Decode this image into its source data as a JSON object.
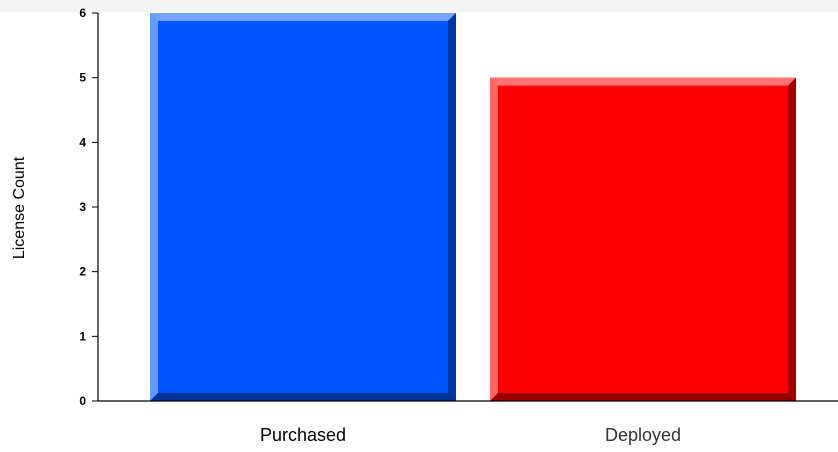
{
  "chart_data": {
    "type": "bar",
    "title": "",
    "xlabel": "",
    "ylabel": "License Count",
    "categories": [
      "Purchased",
      "Deployed"
    ],
    "values": [
      6,
      5
    ],
    "ylim": [
      0,
      6
    ],
    "yticks": [
      "0",
      "1",
      "2",
      "3",
      "4",
      "5",
      "6"
    ],
    "colors": [
      "#0055ff",
      "#ff0000"
    ],
    "grid": false,
    "legend": "none"
  }
}
